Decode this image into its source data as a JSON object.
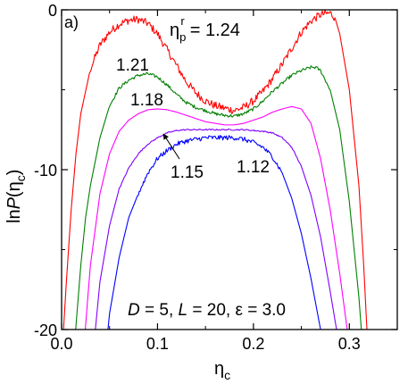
{
  "chart_data": {
    "type": "line",
    "panel_label": "a)",
    "xlabel": "η",
    "xlabel_sub": "c",
    "ylabel_prefix": "ln",
    "ylabel_italic": "P",
    "ylabel_open": "(η",
    "ylabel_sub": "c",
    "ylabel_close": ")",
    "xlim": [
      0.0,
      0.35
    ],
    "ylim": [
      -20,
      0
    ],
    "xticks": [
      0.0,
      0.1,
      0.2,
      0.3
    ],
    "xtick_labels": [
      "0.0",
      "0.1",
      "0.2",
      "0.3"
    ],
    "yticks": [
      -20,
      -10,
      0
    ],
    "ytick_labels": [
      "-20",
      "-10",
      "0"
    ],
    "annotation": {
      "D_sym": "D",
      "D_val": " = 5, ",
      "L_sym": "L",
      "L_val": " = 20, ",
      "eps_val": "ε = 3.0"
    },
    "param_symbol": "η",
    "param_sub": "p",
    "param_sup": "r",
    "series": [
      {
        "label": "= 1.24",
        "color": "#ff0000",
        "noise": 0.25,
        "x": [
          0.0,
          0.005,
          0.01,
          0.015,
          0.02,
          0.03,
          0.04,
          0.05,
          0.06,
          0.07,
          0.08,
          0.09,
          0.1,
          0.11,
          0.12,
          0.13,
          0.14,
          0.15,
          0.16,
          0.17,
          0.18,
          0.19,
          0.2,
          0.21,
          0.22,
          0.23,
          0.24,
          0.25,
          0.26,
          0.27,
          0.28,
          0.285,
          0.29,
          0.3,
          0.31,
          0.315,
          0.32
        ],
        "y": [
          -22,
          -17,
          -12.5,
          -9,
          -6.5,
          -3.7,
          -2.2,
          -1.4,
          -0.9,
          -0.65,
          -0.6,
          -0.85,
          -1.5,
          -2.5,
          -3.5,
          -4.5,
          -5.2,
          -5.7,
          -6.0,
          -6.15,
          -6.3,
          -6.1,
          -5.7,
          -5.1,
          -4.3,
          -3.4,
          -2.4,
          -1.4,
          -0.7,
          -0.3,
          -0.2,
          -0.5,
          -1.5,
          -5,
          -11,
          -16,
          -22
        ]
      },
      {
        "label": "1.21",
        "color": "#008000",
        "noise": 0.1,
        "x": [
          0.012,
          0.02,
          0.025,
          0.03,
          0.04,
          0.05,
          0.06,
          0.07,
          0.08,
          0.09,
          0.1,
          0.11,
          0.12,
          0.13,
          0.14,
          0.15,
          0.16,
          0.17,
          0.18,
          0.19,
          0.2,
          0.21,
          0.22,
          0.23,
          0.24,
          0.25,
          0.26,
          0.265,
          0.27,
          0.28,
          0.29,
          0.3,
          0.305,
          0.31,
          0.315
        ],
        "y": [
          -22,
          -16,
          -13,
          -11,
          -8,
          -6,
          -4.9,
          -4.4,
          -4.1,
          -4.0,
          -4.2,
          -4.7,
          -5.3,
          -5.8,
          -6.1,
          -6.3,
          -6.5,
          -6.6,
          -6.65,
          -6.5,
          -6.2,
          -5.7,
          -5.1,
          -4.6,
          -4.1,
          -3.8,
          -3.6,
          -3.6,
          -3.8,
          -5,
          -7.5,
          -12,
          -15,
          -18,
          -22
        ]
      },
      {
        "label": "1.18",
        "color": "#ff00ff",
        "noise": 0.0,
        "x": [
          0.022,
          0.03,
          0.04,
          0.05,
          0.06,
          0.07,
          0.08,
          0.09,
          0.1,
          0.11,
          0.12,
          0.13,
          0.14,
          0.15,
          0.16,
          0.17,
          0.18,
          0.19,
          0.2,
          0.21,
          0.22,
          0.23,
          0.24,
          0.25,
          0.26,
          0.27,
          0.28,
          0.29,
          0.3,
          0.305
        ],
        "y": [
          -22,
          -16,
          -11.5,
          -9,
          -7.6,
          -6.9,
          -6.5,
          -6.25,
          -6.2,
          -6.25,
          -6.4,
          -6.6,
          -6.8,
          -7.0,
          -7.1,
          -7.2,
          -7.2,
          -7.1,
          -6.9,
          -6.7,
          -6.4,
          -6.2,
          -6.05,
          -6.2,
          -7.1,
          -9.3,
          -12.5,
          -16.5,
          -21,
          -22
        ]
      },
      {
        "label": "1.15",
        "color": "#8000ff",
        "noise": 0.04,
        "x": [
          0.032,
          0.04,
          0.05,
          0.06,
          0.07,
          0.08,
          0.09,
          0.1,
          0.11,
          0.12,
          0.13,
          0.14,
          0.15,
          0.16,
          0.17,
          0.18,
          0.19,
          0.2,
          0.21,
          0.22,
          0.23,
          0.24,
          0.25,
          0.26,
          0.27,
          0.28,
          0.29,
          0.295
        ],
        "y": [
          -22,
          -17,
          -13.5,
          -11.2,
          -9.9,
          -9.0,
          -8.4,
          -8.0,
          -7.7,
          -7.55,
          -7.5,
          -7.5,
          -7.5,
          -7.5,
          -7.5,
          -7.5,
          -7.5,
          -7.55,
          -7.6,
          -7.7,
          -8.0,
          -8.6,
          -9.8,
          -11.6,
          -14.2,
          -17.6,
          -21.2,
          -22
        ]
      },
      {
        "label": "1.12",
        "color": "#0000ff",
        "noise": 0.15,
        "x": [
          0.045,
          0.05,
          0.06,
          0.07,
          0.08,
          0.09,
          0.1,
          0.11,
          0.12,
          0.13,
          0.14,
          0.15,
          0.16,
          0.17,
          0.18,
          0.19,
          0.2,
          0.21,
          0.22,
          0.23,
          0.24,
          0.25,
          0.26,
          0.27,
          0.275,
          0.28
        ],
        "y": [
          -22,
          -19,
          -15.5,
          -13,
          -11.5,
          -10.2,
          -9.3,
          -8.8,
          -8.4,
          -8.2,
          -8.1,
          -8.0,
          -8.0,
          -8.0,
          -8.0,
          -8.1,
          -8.3,
          -8.6,
          -9.2,
          -10.2,
          -11.8,
          -14,
          -16.8,
          -20,
          -21.5,
          -22
        ]
      }
    ]
  }
}
